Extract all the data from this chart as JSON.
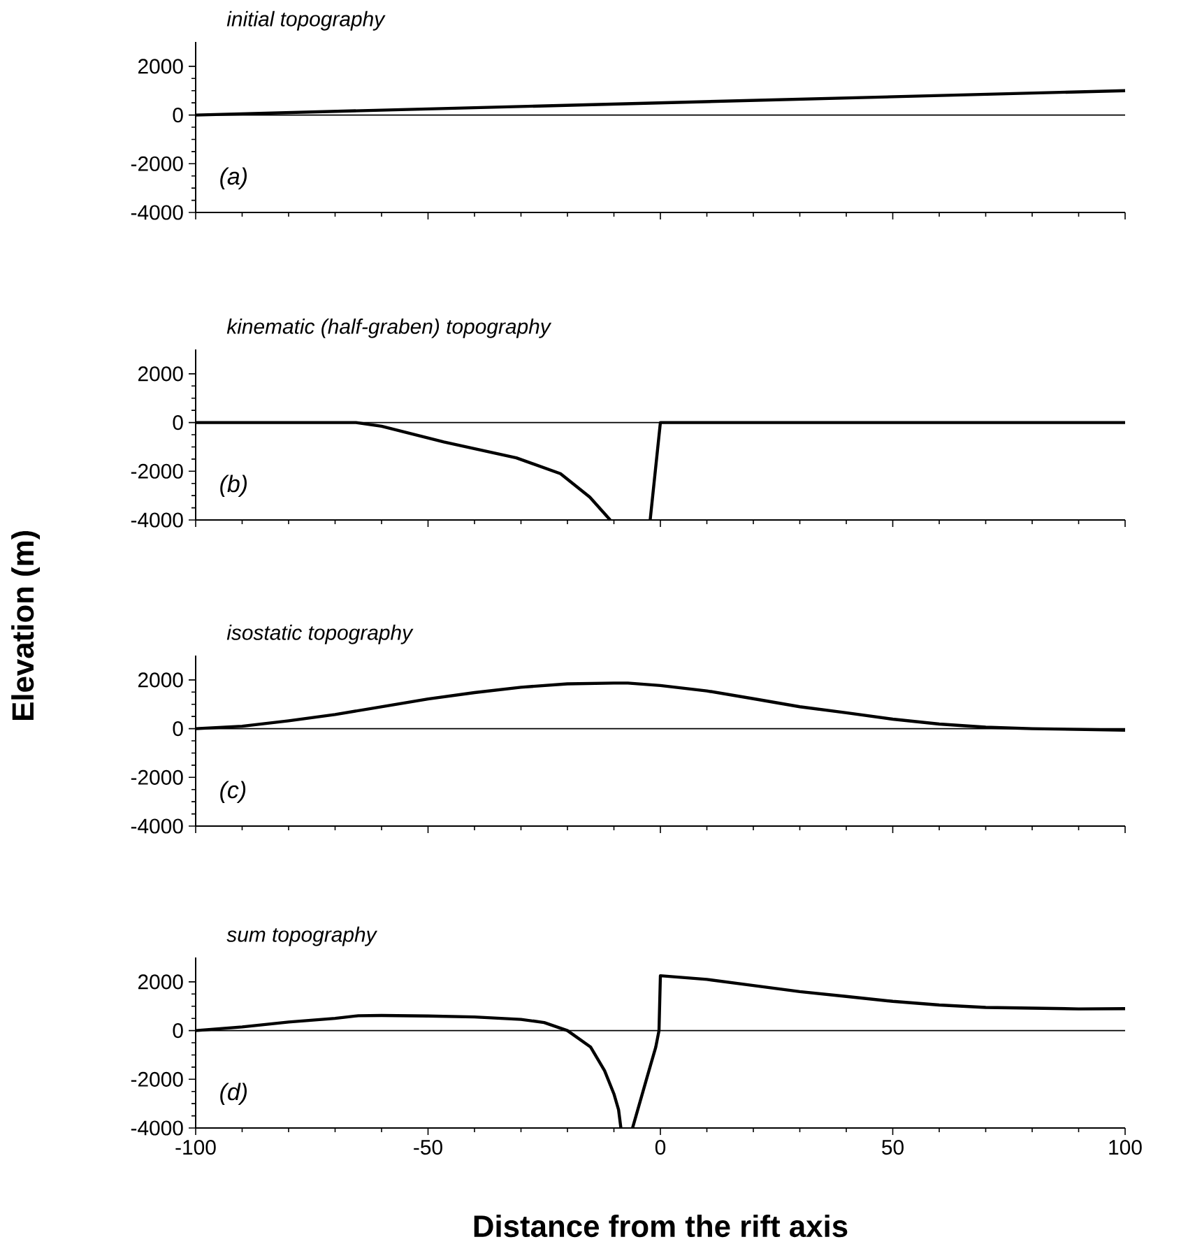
{
  "chart_data": [
    {
      "type": "line",
      "title": "initial topography",
      "annotations": [
        "(a)"
      ],
      "color": "#000000",
      "tick_labels": "y",
      "grid": false,
      "x": [
        -100,
        100
      ],
      "values": [
        0,
        1000
      ],
      "xlim": [
        -100,
        100
      ],
      "ylim": [
        -4000,
        3000
      ],
      "xticks": [
        -100,
        -50,
        0,
        50,
        100
      ],
      "yticks": [
        -4000,
        -2000,
        0,
        2000
      ],
      "ref_lines": [
        {
          "axis": "y",
          "value": 0,
          "color": "#000000"
        }
      ]
    },
    {
      "type": "line",
      "title": "kinematic (half-graben) topography",
      "annotations": [
        "(b)"
      ],
      "color": "#000000",
      "tick_labels": "y",
      "grid": false,
      "ylabel": "Elevation (m)",
      "x": [
        -100,
        -65.5,
        -60,
        -46.6,
        -31,
        -21.5,
        -15.2,
        -10.8,
        -6,
        -2.2,
        0,
        100
      ],
      "values": [
        0,
        0,
        -150,
        -800,
        -1450,
        -2100,
        -3060,
        -4000,
        null,
        -4000,
        0,
        0
      ],
      "xlim": [
        -100,
        100
      ],
      "ylim": [
        -4000,
        3000
      ],
      "xticks": [
        -100,
        -50,
        0,
        50,
        100
      ],
      "yticks": [
        -4000,
        -2000,
        0,
        2000
      ],
      "ref_lines": [
        {
          "axis": "y",
          "value": 0,
          "color": "#000000"
        }
      ]
    },
    {
      "type": "line",
      "title": "isostatic topography",
      "annotations": [
        "(c)"
      ],
      "color": "#000000",
      "tick_labels": "y",
      "grid": false,
      "x": [
        -100,
        -90,
        -80,
        -70,
        -60,
        -50,
        -40,
        -30,
        -20,
        -10,
        -7,
        0,
        10,
        20,
        30,
        40,
        50,
        60,
        70,
        80,
        90,
        100
      ],
      "values": [
        0,
        100,
        320,
        580,
        900,
        1220,
        1480,
        1700,
        1840,
        1870,
        1870,
        1770,
        1550,
        1230,
        900,
        650,
        390,
        190,
        60,
        0,
        -30,
        -60
      ],
      "xlim": [
        -100,
        100
      ],
      "ylim": [
        -4000,
        3000
      ],
      "xticks": [
        -100,
        -50,
        0,
        50,
        100
      ],
      "yticks": [
        -4000,
        -2000,
        0,
        2000
      ],
      "ref_lines": [
        {
          "axis": "y",
          "value": 0,
          "color": "#000000"
        }
      ]
    },
    {
      "type": "line",
      "title": "sum topography",
      "annotations": [
        "(d)"
      ],
      "color": "#000000",
      "grid": false,
      "xlabel": "Distance from the rift axis",
      "x": [
        -100,
        -90,
        -80,
        -70,
        -65,
        -60,
        -50,
        -40,
        -30,
        -25,
        -20,
        -15,
        -12,
        -10,
        -9,
        -8.5,
        -7,
        -6,
        -3,
        -1,
        -0.3,
        0,
        10,
        20,
        30,
        40,
        50,
        60,
        70,
        80,
        90,
        100
      ],
      "values": [
        0,
        150,
        350,
        500,
        610,
        620,
        600,
        560,
        460,
        330,
        0,
        -680,
        -1650,
        -2600,
        -3250,
        -4000,
        null,
        -4000,
        -2000,
        -680,
        0,
        2250,
        2100,
        1850,
        1600,
        1400,
        1200,
        1050,
        950,
        920,
        890,
        900
      ],
      "xlim": [
        -100,
        100
      ],
      "ylim": [
        -4000,
        3000
      ],
      "xticks": [
        -100,
        -50,
        0,
        50,
        100
      ],
      "yticks": [
        -4000,
        -2000,
        0,
        2000
      ],
      "ref_lines": [
        {
          "axis": "y",
          "value": 0,
          "color": "#000000"
        }
      ]
    }
  ]
}
